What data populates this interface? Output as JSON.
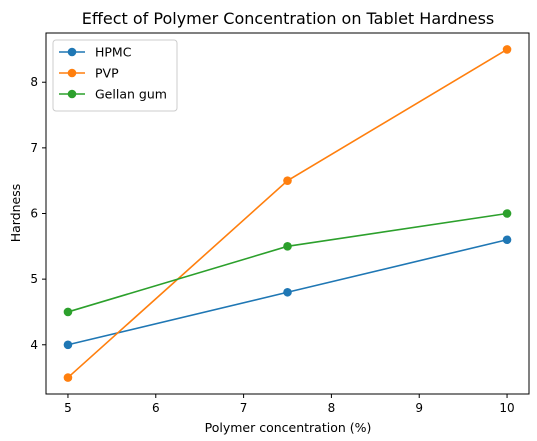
{
  "chart_data": {
    "type": "line",
    "title": "Effect of Polymer Concentration on Tablet Hardness",
    "xlabel": "Polymer concentration (%)",
    "ylabel": "Hardness",
    "x": [
      5,
      7.5,
      10
    ],
    "series": [
      {
        "name": "HPMC",
        "color": "#1f77b4",
        "values": [
          4.0,
          4.8,
          5.6
        ]
      },
      {
        "name": "PVP",
        "color": "#ff7f0e",
        "values": [
          3.5,
          6.5,
          8.5
        ]
      },
      {
        "name": "Gellan gum",
        "color": "#2ca02c",
        "values": [
          4.5,
          5.5,
          6.0
        ]
      }
    ],
    "xlim": [
      4.75,
      10.25
    ],
    "ylim": [
      3.25,
      8.75
    ],
    "xticks": [
      5,
      6,
      7,
      8,
      9,
      10
    ],
    "yticks": [
      4,
      5,
      6,
      7,
      8
    ],
    "grid": false,
    "legend": "top-left"
  }
}
